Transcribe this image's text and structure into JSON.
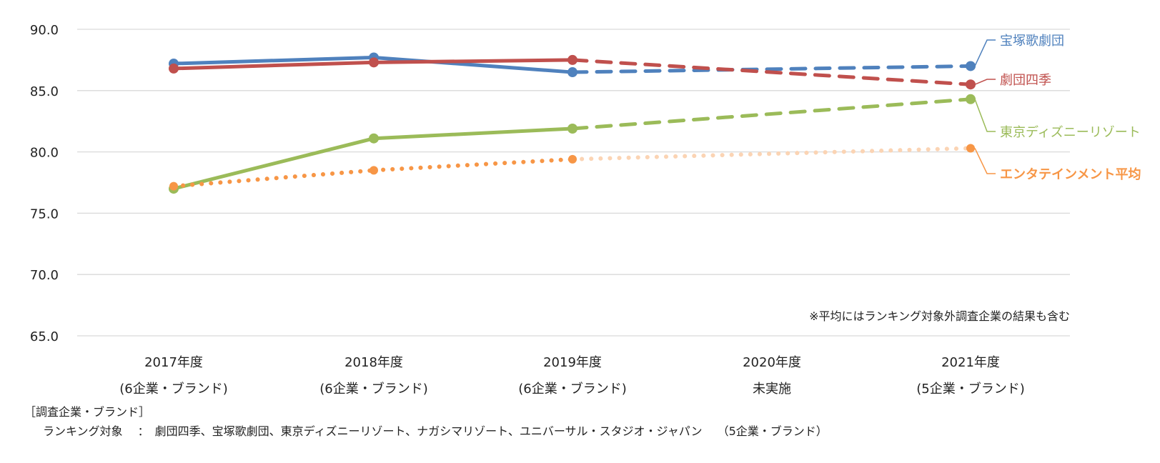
{
  "chart_data": {
    "type": "line",
    "ylim": [
      65,
      90
    ],
    "y_ticks": [
      "90.0",
      "85.0",
      "80.0",
      "75.0",
      "70.0",
      "65.0"
    ],
    "y_tick_values": [
      90,
      85,
      80,
      75,
      70,
      65
    ],
    "grid": true,
    "legend": "right",
    "categories": [
      {
        "year": "2017年度",
        "sub": "(6企業・ブランド)"
      },
      {
        "year": "2018年度",
        "sub": "(6企業・ブランド)"
      },
      {
        "year": "2019年度",
        "sub": "(6企業・ブランド)"
      },
      {
        "year": "2020年度",
        "sub": "未実施"
      },
      {
        "year": "2021年度",
        "sub": "(5企業・ブランド)"
      }
    ],
    "series": [
      {
        "name": "宝塚歌劇団",
        "color": "#4f81bd",
        "values": [
          87.2,
          87.7,
          86.5,
          null,
          87.0
        ],
        "style": "solid"
      },
      {
        "name": "劇団四季",
        "color": "#c0504d",
        "values": [
          86.8,
          87.3,
          87.5,
          null,
          85.5
        ],
        "style": "solid"
      },
      {
        "name": "東京ディズニーリゾート",
        "color": "#9bbb59",
        "values": [
          77.0,
          81.1,
          81.9,
          null,
          84.3
        ],
        "style": "solid"
      },
      {
        "name": "エンタテインメント平均",
        "color": "#f79646",
        "light_color": "#fbd4b4",
        "values": [
          77.2,
          78.5,
          79.4,
          null,
          80.3
        ],
        "style": "dotted",
        "bold": true
      }
    ],
    "note": "※平均にはランキング対象外調査企業の結果も含む"
  },
  "footer": {
    "title": "［調査企業・ブランド］",
    "line": "ランキング対象　 ：　劇団四季、宝塚歌劇団、東京ディズニーリゾート、ナガシマリゾート、ユニバーサル・スタジオ・ジャパン　 （5企業・ブランド）"
  }
}
